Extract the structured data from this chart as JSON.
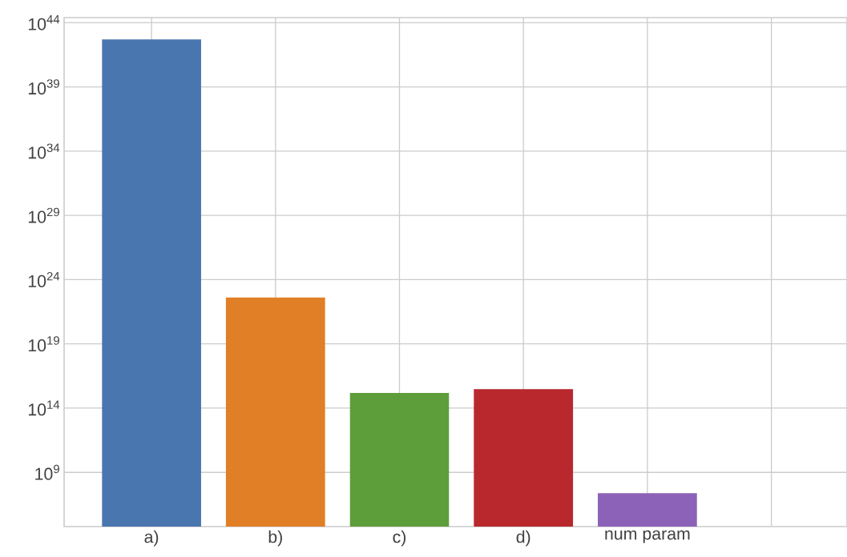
{
  "chart_data": {
    "type": "bar",
    "categories": [
      "a)",
      "b)",
      "c)",
      "d)",
      "num param",
      null
    ],
    "values": [
      5e+42,
      4e+22,
      1500000000000000.0,
      3000000000000000.0,
      24000000.0,
      null
    ],
    "colors": [
      "#4a76b0",
      "#e07f26",
      "#5e9e3a",
      "#b8282d",
      "#8c62b8",
      "#888888"
    ],
    "log": "y",
    "ylim": [
      60000.0,
      2.5e+44
    ],
    "yticks": [
      {
        "value": 1000000000.0,
        "label": "10$^{9}$"
      },
      {
        "value": 100000000000000.0,
        "label": "10$^{14}$"
      },
      {
        "value": 1e+19,
        "label": "10$^{19}$"
      },
      {
        "value": 1e+24,
        "label": "10$^{24}$"
      },
      {
        "value": 1e+29,
        "label": "10$^{29}$"
      },
      {
        "value": 1e+34,
        "label": "10$^{34}$"
      },
      {
        "value": 1e+39,
        "label": "10$^{39}$"
      },
      {
        "value": 1e+44,
        "label": "10$^{44}$"
      }
    ],
    "grid": true
  }
}
